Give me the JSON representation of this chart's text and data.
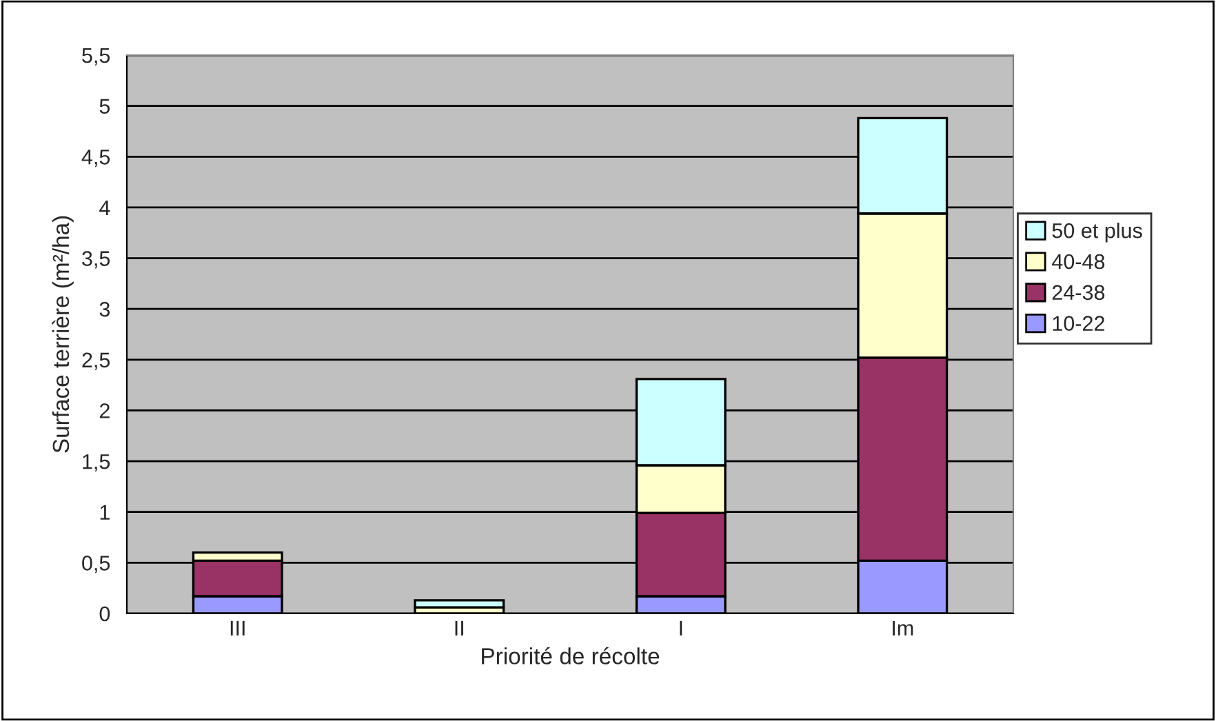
{
  "chart_data": {
    "type": "bar",
    "stacked": true,
    "xlabel": "Priorité de récolte",
    "ylabel": "Surface terrière (m²/ha)",
    "categories": [
      "III",
      "II",
      "I",
      "Im"
    ],
    "series": [
      {
        "name": "10-22",
        "color": "#9999ff",
        "values": [
          0.17,
          null,
          0.17,
          0.52
        ]
      },
      {
        "name": "24-38",
        "color": "#993366",
        "values": [
          0.35,
          null,
          0.82,
          2.0
        ]
      },
      {
        "name": "40-48",
        "color": "#ffffcc",
        "values": [
          0.08,
          0.06,
          0.47,
          1.42
        ]
      },
      {
        "name": "50 et plus",
        "color": "#ccffff",
        "values": [
          null,
          0.07,
          0.85,
          0.94
        ]
      }
    ],
    "ylim": [
      0,
      5.5
    ],
    "yticks": [
      0,
      {
        "value": 0.5,
        "label": "0,5"
      },
      1,
      {
        "value": 1.5,
        "label": "1,5"
      },
      2,
      {
        "value": 2.5,
        "label": "2,5"
      },
      3,
      {
        "value": 3.5,
        "label": "3,5"
      },
      4,
      {
        "value": 4.5,
        "label": "4,5"
      },
      5,
      {
        "value": 5.5,
        "label": "5,5"
      }
    ],
    "grid": "y",
    "legend": "right"
  }
}
